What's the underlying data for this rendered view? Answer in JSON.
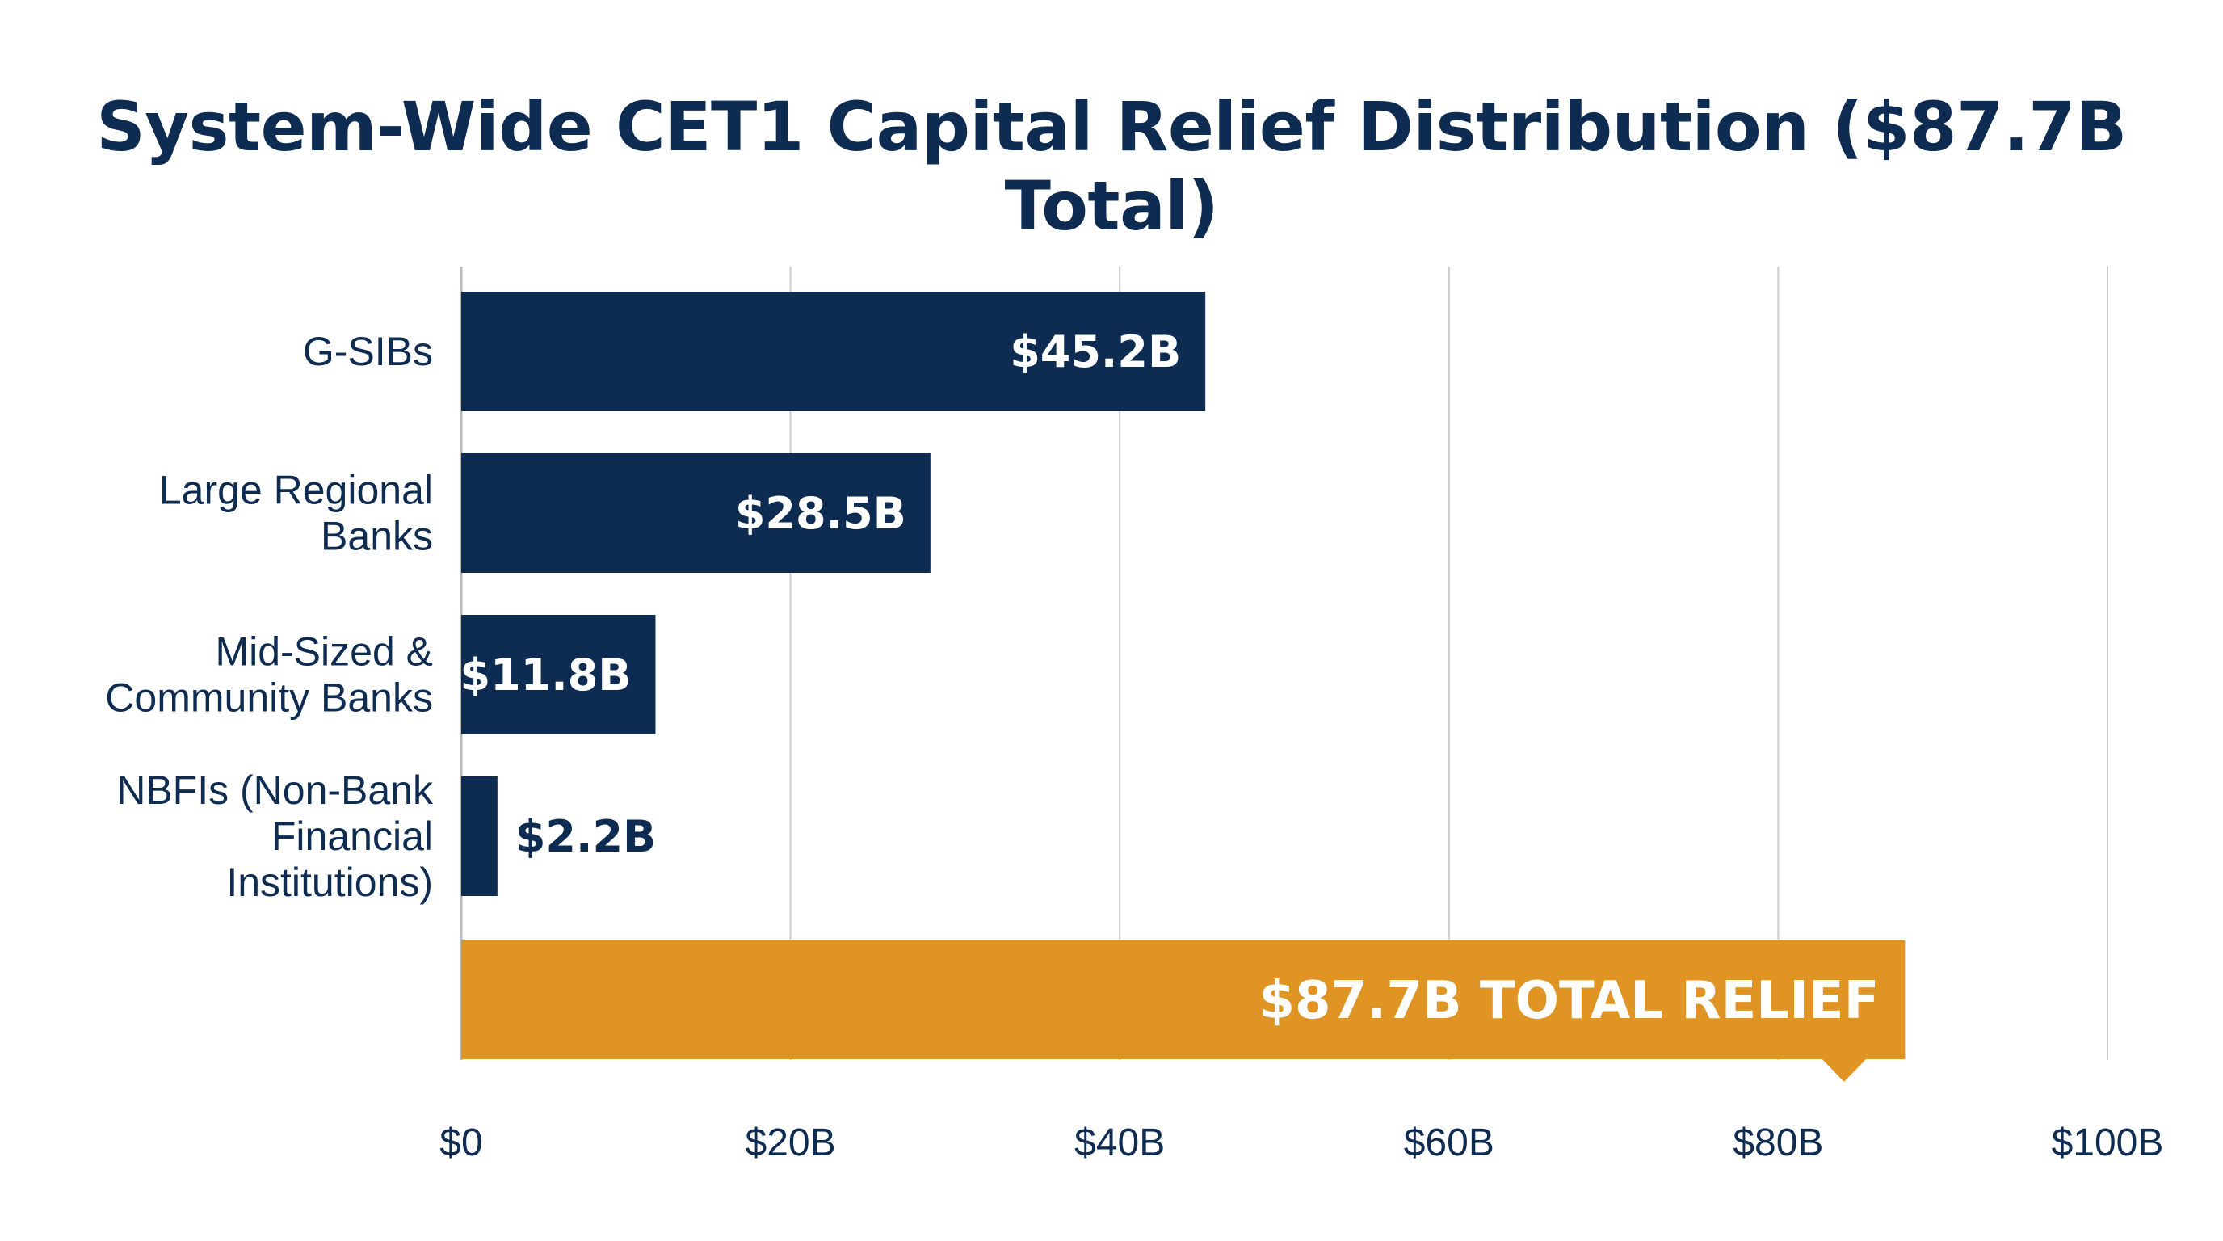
{
  "chart_data": {
    "type": "bar",
    "orientation": "horizontal",
    "title": "System-Wide CET1 Capital Relief Distribution ($87.7B Total)",
    "categories": [
      [
        "G-SIBs"
      ],
      [
        "Large Regional",
        "Banks"
      ],
      [
        "Mid-Sized &",
        "Community Banks"
      ],
      [
        "NBFIs (Non-Bank",
        "Financial",
        "Institutions)"
      ]
    ],
    "values": [
      45.2,
      28.5,
      11.8,
      2.2
    ],
    "data_labels": [
      "$45.2B",
      "$28.5B",
      "$11.8B",
      "$2.2B"
    ],
    "total": {
      "value": 87.7,
      "label": "$87.7B TOTAL RELIEF"
    },
    "xlim": [
      0,
      100
    ],
    "x_ticks": [
      0,
      20,
      40,
      60,
      80,
      100
    ],
    "x_tick_labels": [
      "$0",
      "$20B",
      "$40B",
      "$60B",
      "$80B",
      "$100B"
    ],
    "grid": true,
    "colors": {
      "bar": "#0e2b52",
      "total": "#df9424",
      "grid": "#cccccc",
      "text": "#0e2b52"
    }
  }
}
